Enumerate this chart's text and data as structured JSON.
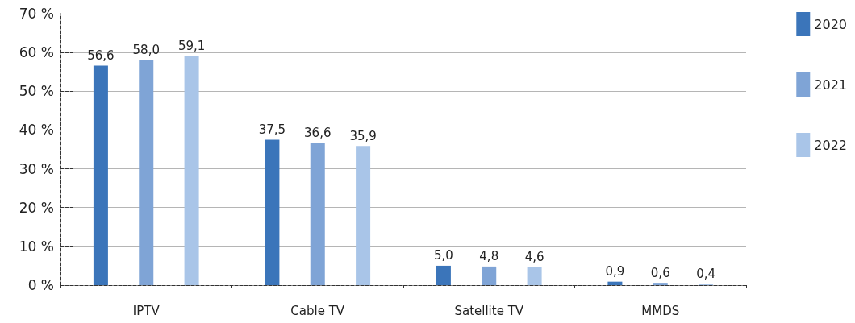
{
  "chart_data": {
    "type": "bar",
    "categories": [
      "IPTV",
      "Cable TV",
      "Satellite TV",
      "MMDS"
    ],
    "series": [
      {
        "name": "2020",
        "color": "#3b75ba",
        "values": [
          56.6,
          37.5,
          5.0,
          0.9
        ],
        "value_labels": [
          "56,6",
          "37,5",
          "5,0",
          "0,9"
        ]
      },
      {
        "name": "2021",
        "color": "#7fa4d6",
        "values": [
          58.0,
          36.6,
          4.8,
          0.6
        ],
        "value_labels": [
          "58,0",
          "36,6",
          "4,8",
          "0,6"
        ]
      },
      {
        "name": "2022",
        "color": "#a9c5e8",
        "values": [
          59.1,
          35.9,
          4.6,
          0.4
        ],
        "value_labels": [
          "59,1",
          "35,9",
          "4,6",
          "0,4"
        ]
      }
    ],
    "ylim": [
      0,
      70
    ],
    "yticks": [
      {
        "value": 0,
        "label": "0 %"
      },
      {
        "value": 10,
        "label": "10 %"
      },
      {
        "value": 20,
        "label": "20 %"
      },
      {
        "value": 30,
        "label": "30 %"
      },
      {
        "value": 40,
        "label": "40 %"
      },
      {
        "value": 50,
        "label": "50 %"
      },
      {
        "value": 60,
        "label": "60 %"
      },
      {
        "value": 70,
        "label": "70 %"
      }
    ],
    "grid": "y",
    "legend": "right"
  }
}
